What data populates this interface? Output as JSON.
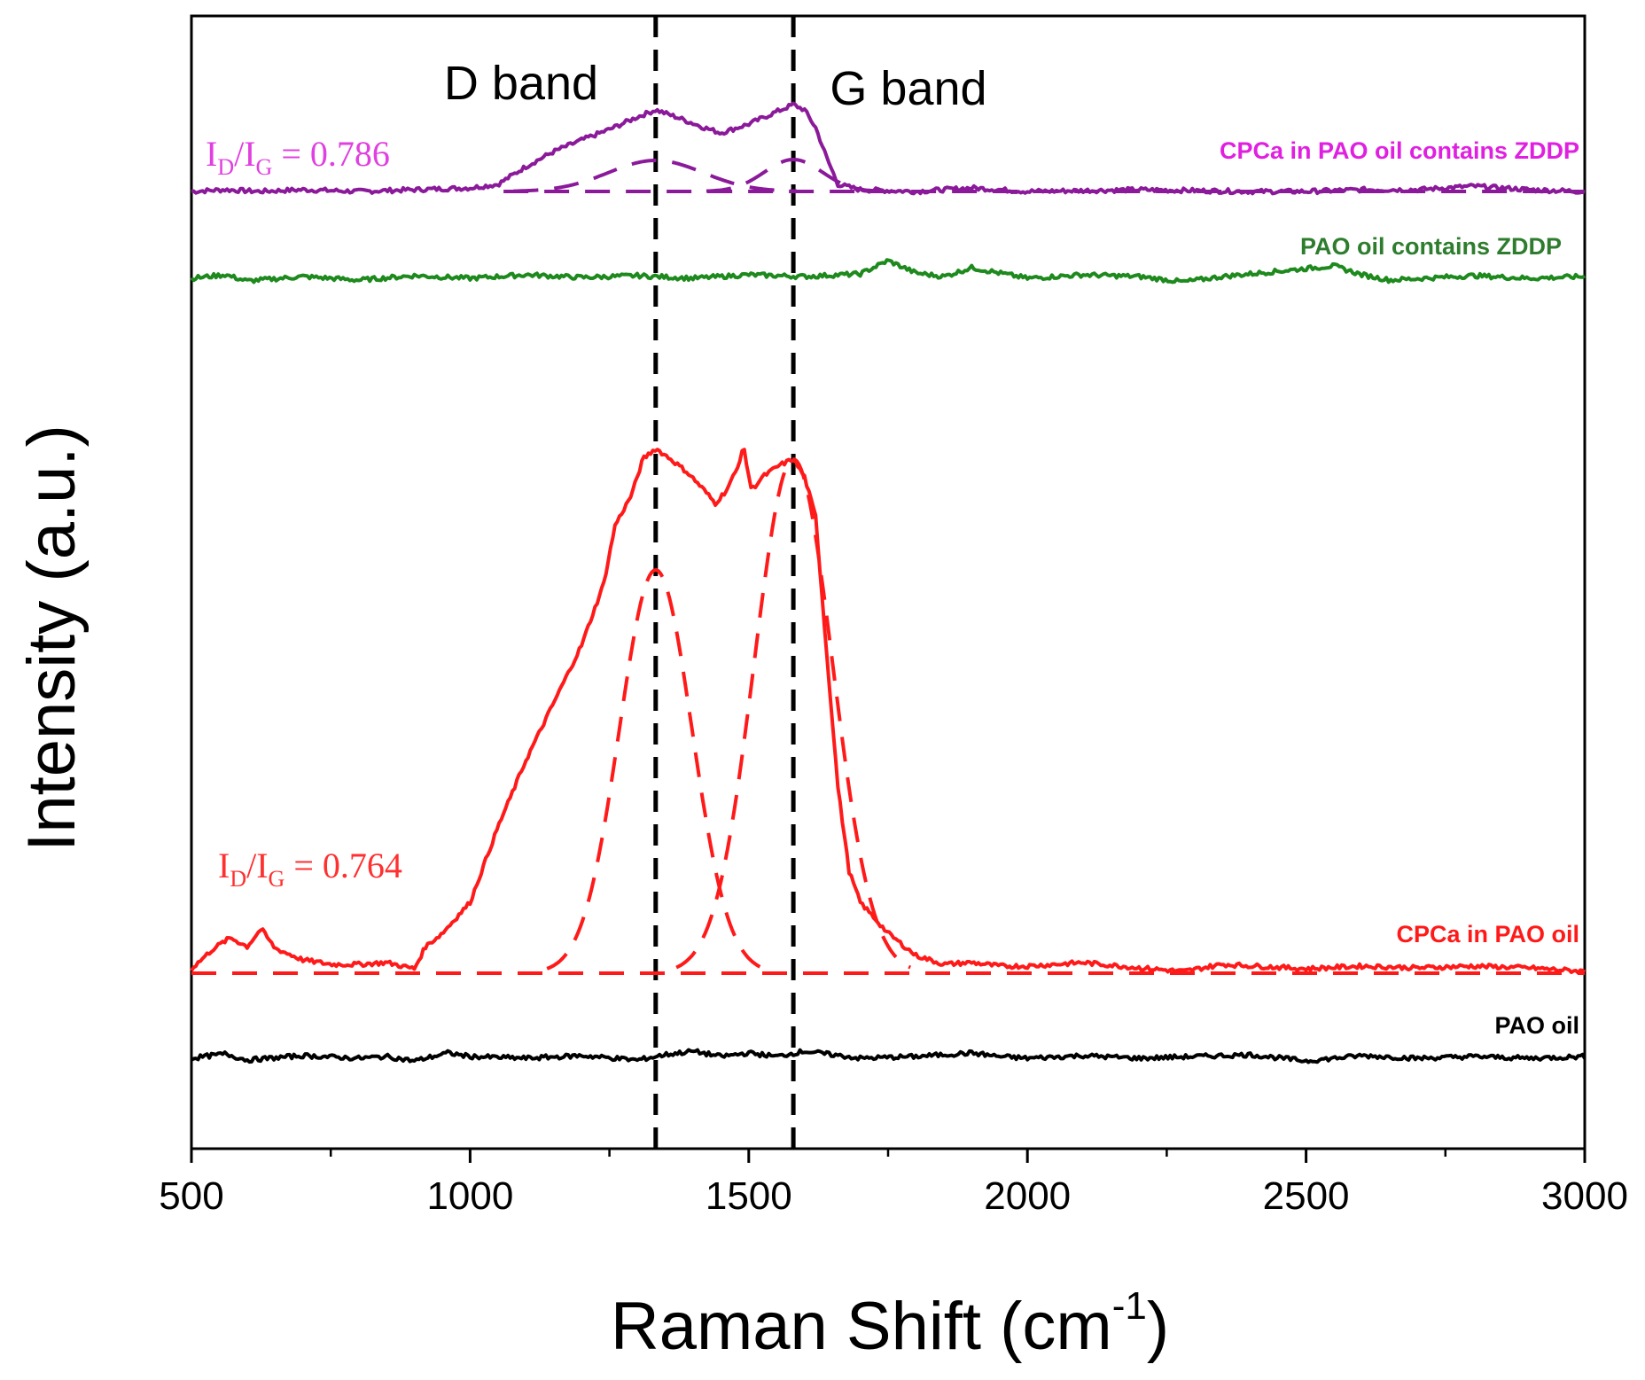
{
  "chart_data": {
    "type": "line",
    "title": "",
    "xlabel": "Raman Shift (cm",
    "xlabel_sup": "-1",
    "xlabel_close": ")",
    "ylabel": "Intensity (a.u.)",
    "xlim": [
      500,
      3000
    ],
    "xticks": [
      500,
      1000,
      1500,
      2000,
      2500,
      3000
    ],
    "xtick_labels": [
      "500",
      "1000",
      "1500",
      "2000",
      "2500",
      "3000"
    ],
    "yticks": "none",
    "grid": false,
    "vertical_markers": [
      {
        "x": 1333,
        "label": "D band",
        "style": "dashed",
        "color": "#000000"
      },
      {
        "x": 1580,
        "label": "G band",
        "style": "dashed",
        "color": "#000000"
      }
    ],
    "series": [
      {
        "name": "CPCa in PAO oil contains ZDDP",
        "color": "#8B1A9A",
        "label_color": "#E020E0",
        "ratio": {
          "label": "I_D/I_G = 0.786",
          "sub1": "D",
          "sub2": "G",
          "value": "0.786",
          "color": "#E040E0"
        },
        "points": [
          [
            500,
            0
          ],
          [
            560,
            2
          ],
          [
            620,
            0
          ],
          [
            700,
            2
          ],
          [
            800,
            0
          ],
          [
            900,
            2
          ],
          [
            1000,
            4
          ],
          [
            1050,
            8
          ],
          [
            1100,
            28
          ],
          [
            1150,
            45
          ],
          [
            1200,
            58
          ],
          [
            1250,
            70
          ],
          [
            1300,
            84
          ],
          [
            1333,
            92
          ],
          [
            1370,
            84
          ],
          [
            1420,
            72
          ],
          [
            1450,
            66
          ],
          [
            1500,
            76
          ],
          [
            1550,
            90
          ],
          [
            1580,
            98
          ],
          [
            1600,
            92
          ],
          [
            1620,
            72
          ],
          [
            1640,
            38
          ],
          [
            1660,
            8
          ],
          [
            1700,
            2
          ],
          [
            1800,
            0
          ],
          [
            1900,
            4
          ],
          [
            2000,
            0
          ],
          [
            2200,
            2
          ],
          [
            2400,
            0
          ],
          [
            2500,
            0
          ],
          [
            2600,
            2
          ],
          [
            2700,
            2
          ],
          [
            2800,
            6
          ],
          [
            2900,
            2
          ],
          [
            3000,
            0
          ]
        ],
        "fits": [
          {
            "center": 1333,
            "height": 35,
            "width": 85
          },
          {
            "center": 1580,
            "height": 36,
            "width": 52
          }
        ]
      },
      {
        "name": "PAO oil contains ZDDP",
        "color": "#1E8A1E",
        "label_color": "#2E7D2E",
        "points": [
          [
            500,
            0
          ],
          [
            560,
            4
          ],
          [
            600,
            -3
          ],
          [
            700,
            2
          ],
          [
            800,
            -2
          ],
          [
            900,
            3
          ],
          [
            1000,
            0
          ],
          [
            1100,
            4
          ],
          [
            1200,
            1
          ],
          [
            1300,
            3
          ],
          [
            1400,
            0
          ],
          [
            1500,
            4
          ],
          [
            1600,
            2
          ],
          [
            1700,
            5
          ],
          [
            1750,
            20
          ],
          [
            1800,
            6
          ],
          [
            1850,
            2
          ],
          [
            1900,
            12
          ],
          [
            1950,
            6
          ],
          [
            2000,
            0
          ],
          [
            2100,
            4
          ],
          [
            2200,
            2
          ],
          [
            2280,
            -4
          ],
          [
            2350,
            2
          ],
          [
            2450,
            8
          ],
          [
            2550,
            14
          ],
          [
            2600,
            4
          ],
          [
            2650,
            -2
          ],
          [
            2800,
            3
          ],
          [
            2900,
            0
          ],
          [
            3000,
            2
          ]
        ]
      },
      {
        "name": "CPCa in PAO oil",
        "color": "#FF1A1A",
        "label_color": "#FF1A1A",
        "ratio": {
          "label": "I_D/I_G = 0.764",
          "sub1": "D",
          "sub2": "G",
          "value": "0.764",
          "color": "#FF3030"
        },
        "points": [
          [
            500,
            5
          ],
          [
            540,
            28
          ],
          [
            570,
            40
          ],
          [
            600,
            30
          ],
          [
            625,
            50
          ],
          [
            650,
            28
          ],
          [
            700,
            15
          ],
          [
            750,
            10
          ],
          [
            800,
            10
          ],
          [
            850,
            12
          ],
          [
            900,
            5
          ],
          [
            920,
            30
          ],
          [
            950,
            45
          ],
          [
            1000,
            80
          ],
          [
            1050,
            165
          ],
          [
            1100,
            240
          ],
          [
            1150,
            305
          ],
          [
            1200,
            370
          ],
          [
            1240,
            440
          ],
          [
            1260,
            505
          ],
          [
            1290,
            540
          ],
          [
            1310,
            580
          ],
          [
            1333,
            592
          ],
          [
            1360,
            580
          ],
          [
            1390,
            565
          ],
          [
            1420,
            545
          ],
          [
            1440,
            530
          ],
          [
            1460,
            545
          ],
          [
            1480,
            570
          ],
          [
            1490,
            595
          ],
          [
            1505,
            545
          ],
          [
            1525,
            560
          ],
          [
            1555,
            573
          ],
          [
            1580,
            580
          ],
          [
            1600,
            560
          ],
          [
            1620,
            515
          ],
          [
            1640,
            360
          ],
          [
            1660,
            210
          ],
          [
            1680,
            115
          ],
          [
            1700,
            80
          ],
          [
            1750,
            45
          ],
          [
            1800,
            20
          ],
          [
            1850,
            10
          ],
          [
            1900,
            12
          ],
          [
            1950,
            8
          ],
          [
            2000,
            8
          ],
          [
            2100,
            12
          ],
          [
            2200,
            6
          ],
          [
            2280,
            2
          ],
          [
            2350,
            10
          ],
          [
            2500,
            5
          ],
          [
            2600,
            8
          ],
          [
            2700,
            6
          ],
          [
            2800,
            8
          ],
          [
            2900,
            6
          ],
          [
            3000,
            2
          ]
        ],
        "fits": [
          {
            "center": 1333,
            "height": 455,
            "width": 65
          },
          {
            "center": 1580,
            "height": 580,
            "width": 70
          }
        ]
      },
      {
        "name": "PAO oil",
        "color": "#000000",
        "label_color": "#000000",
        "points": [
          [
            500,
            0
          ],
          [
            560,
            5
          ],
          [
            600,
            -2
          ],
          [
            700,
            3
          ],
          [
            800,
            0
          ],
          [
            850,
            2
          ],
          [
            900,
            -3
          ],
          [
            960,
            6
          ],
          [
            1000,
            2
          ],
          [
            1100,
            0
          ],
          [
            1200,
            3
          ],
          [
            1300,
            -2
          ],
          [
            1350,
            4
          ],
          [
            1400,
            8
          ],
          [
            1450,
            2
          ],
          [
            1500,
            6
          ],
          [
            1550,
            2
          ],
          [
            1600,
            8
          ],
          [
            1650,
            4
          ],
          [
            1700,
            0
          ],
          [
            1800,
            2
          ],
          [
            1900,
            6
          ],
          [
            1950,
            2
          ],
          [
            2000,
            0
          ],
          [
            2100,
            3
          ],
          [
            2200,
            0
          ],
          [
            2300,
            2
          ],
          [
            2400,
            4
          ],
          [
            2500,
            -3
          ],
          [
            2600,
            3
          ],
          [
            2700,
            0
          ],
          [
            2800,
            2
          ],
          [
            2900,
            0
          ],
          [
            3000,
            2
          ]
        ]
      }
    ],
    "annotations": [
      "D band",
      "G band"
    ]
  }
}
